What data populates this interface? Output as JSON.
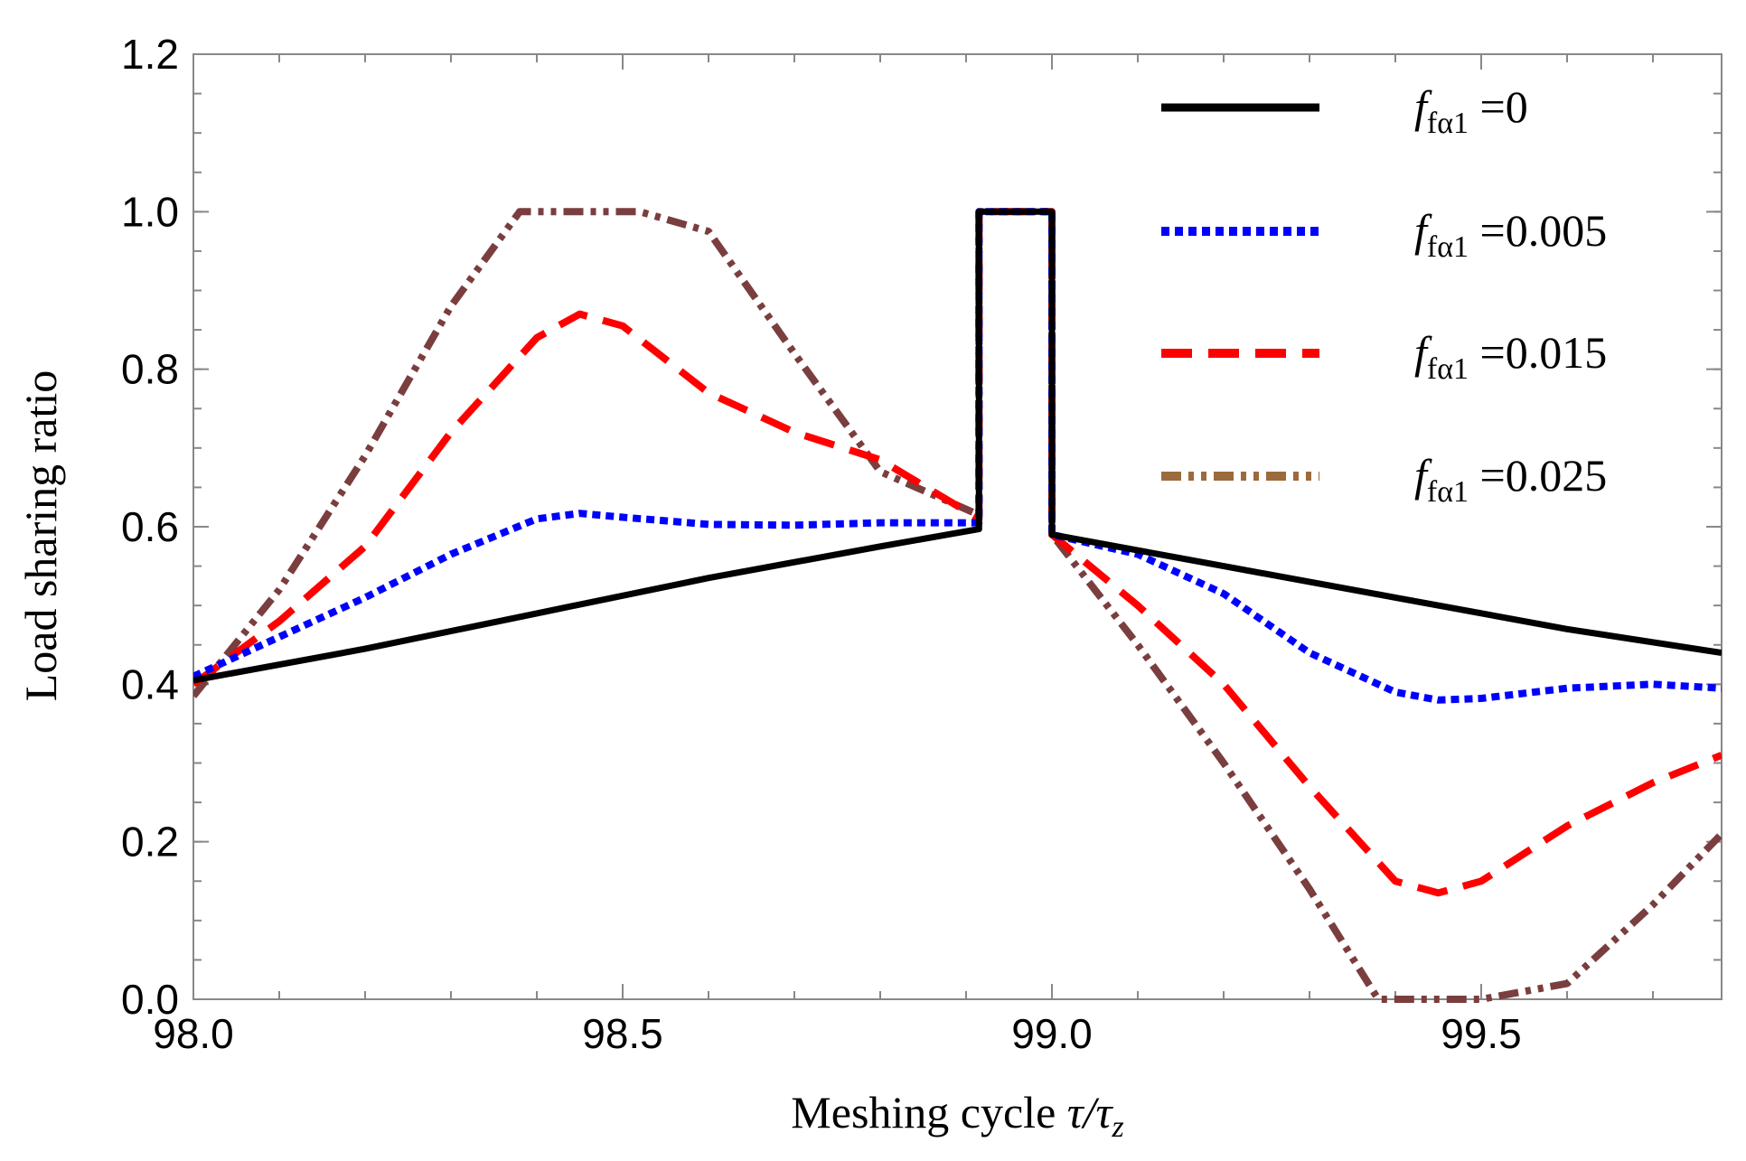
{
  "chart_data": {
    "type": "line",
    "xlabel_prefix": "Meshing cycle ",
    "xlabel_math": "τ/τ",
    "xlabel_math_sub": "z",
    "ylabel": "Load sharing ratio",
    "xlim": [
      98.0,
      99.78
    ],
    "ylim": [
      0.0,
      1.2
    ],
    "xticks": [
      98.0,
      98.5,
      99.0,
      99.5
    ],
    "xtick_labels": [
      "98.0",
      "98.5",
      "99.0",
      "99.5"
    ],
    "xminor_step": 0.1,
    "yticks": [
      0.0,
      0.2,
      0.4,
      0.6,
      0.8,
      1.0,
      1.2
    ],
    "ytick_labels": [
      "0.0",
      "0.2",
      "0.4",
      "0.6",
      "0.8",
      "1.0",
      "1.2"
    ],
    "yminor_step": 0.05,
    "grid": false,
    "legend_position": "top-right",
    "series": [
      {
        "name": "f=0",
        "legend_main": "f",
        "legend_sub": "fα1",
        "legend_value": "=0",
        "color": "#000000",
        "style": "solid",
        "x": [
          98.0,
          98.2,
          98.4,
          98.6,
          98.8,
          98.915,
          98.915,
          99.0,
          99.0,
          99.2,
          99.4,
          99.6,
          99.78
        ],
        "y": [
          0.405,
          0.445,
          0.49,
          0.535,
          0.575,
          0.597,
          1.0,
          1.0,
          0.59,
          0.55,
          0.51,
          0.47,
          0.44
        ]
      },
      {
        "name": "f=0.005",
        "legend_main": "f",
        "legend_sub": "fα1",
        "legend_value": "=0.005",
        "color": "#0000ff",
        "style": "dotted",
        "x": [
          98.0,
          98.1,
          98.2,
          98.3,
          98.4,
          98.45,
          98.5,
          98.6,
          98.7,
          98.8,
          98.915,
          98.915,
          99.0,
          99.0,
          99.1,
          99.2,
          99.3,
          99.4,
          99.45,
          99.5,
          99.6,
          99.7,
          99.78
        ],
        "y": [
          0.41,
          0.46,
          0.51,
          0.565,
          0.61,
          0.617,
          0.612,
          0.603,
          0.602,
          0.605,
          0.605,
          1.0,
          1.0,
          0.59,
          0.565,
          0.515,
          0.44,
          0.39,
          0.38,
          0.382,
          0.395,
          0.4,
          0.395
        ]
      },
      {
        "name": "f=0.015",
        "legend_main": "f",
        "legend_sub": "fα1",
        "legend_value": "=0.015",
        "color": "#ff0000",
        "style": "dashed",
        "x": [
          98.0,
          98.1,
          98.2,
          98.3,
          98.4,
          98.45,
          98.5,
          98.6,
          98.7,
          98.8,
          98.915,
          98.915,
          99.0,
          99.0,
          99.1,
          99.2,
          99.3,
          99.4,
          99.45,
          99.5,
          99.6,
          99.7,
          99.78
        ],
        "y": [
          0.4,
          0.48,
          0.575,
          0.72,
          0.84,
          0.87,
          0.855,
          0.77,
          0.72,
          0.685,
          0.61,
          1.0,
          1.0,
          0.59,
          0.5,
          0.4,
          0.27,
          0.15,
          0.135,
          0.15,
          0.22,
          0.275,
          0.31
        ]
      },
      {
        "name": "f=0.025",
        "legend_main": "f",
        "legend_sub": "fα1",
        "legend_value": "=0.025",
        "color": "#7a3e3e",
        "legend_color": "#9c6b3c",
        "style": "dashdot",
        "x": [
          98.0,
          98.1,
          98.2,
          98.3,
          98.38,
          98.45,
          98.52,
          98.6,
          98.7,
          98.8,
          98.915,
          98.915,
          99.0,
          99.0,
          99.1,
          99.2,
          99.3,
          99.38,
          99.42,
          99.5,
          99.6,
          99.7,
          99.78
        ],
        "y": [
          0.385,
          0.52,
          0.69,
          0.88,
          1.0,
          1.0,
          1.0,
          0.975,
          0.82,
          0.67,
          0.615,
          1.0,
          1.0,
          0.59,
          0.45,
          0.3,
          0.14,
          0.0,
          0.0,
          0.0,
          0.02,
          0.12,
          0.21
        ]
      }
    ]
  }
}
